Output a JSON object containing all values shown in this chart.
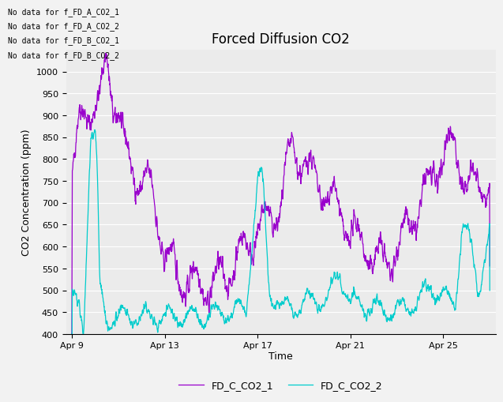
{
  "title": "Forced Diffusion CO2",
  "ylabel": "CO2 Concentration (ppm)",
  "xlabel": "Time",
  "ylim": [
    400,
    1050
  ],
  "yticks": [
    400,
    450,
    500,
    550,
    600,
    650,
    700,
    750,
    800,
    850,
    900,
    950,
    1000
  ],
  "xtick_labels": [
    "Apr 9",
    "Apr 13",
    "Apr 17",
    "Apr 21",
    "Apr 25"
  ],
  "no_data_texts": [
    "No data for f_FD_A_CO2_1",
    "No data for f_FD_A_CO2_2",
    "No data for f_FD_B_CO2_1",
    "No data for f_FD_B_CO2_2"
  ],
  "color_co2_1": "#9900cc",
  "color_co2_2": "#00cccc",
  "legend_entries": [
    "FD_C_CO2_1",
    "FD_C_CO2_2"
  ],
  "plot_bg_color": "#ebebeb",
  "title_fontsize": 12,
  "axis_fontsize": 9,
  "tick_fontsize": 8,
  "nodata_fontsize": 7
}
